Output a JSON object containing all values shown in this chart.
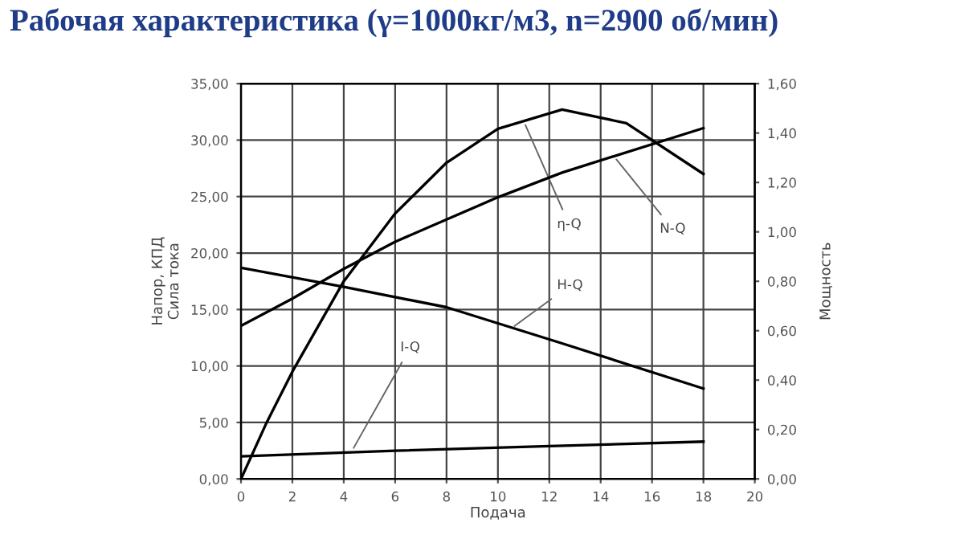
{
  "chart_data": {
    "type": "line",
    "title": "Рабочая характеристика (γ=1000кг/м3, n=2900 об/мин)",
    "xlabel": "Подача",
    "ylabel": "Напор, КПД\nСила тока",
    "y2label": "Мощность",
    "series": [
      {
        "color": "#000000",
        "x": [
          0,
          1,
          2,
          4,
          6,
          8,
          10,
          12.5,
          15,
          18
        ],
        "values": [
          0,
          5,
          9.5,
          17.5,
          23.5,
          28,
          31,
          32.7,
          31.5,
          27
        ]
      },
      {
        "color": "#000000",
        "axis": "y2",
        "x": [
          0,
          2,
          4,
          6,
          8,
          10,
          12.5,
          18
        ],
        "values": [
          0.62,
          0.73,
          0.85,
          0.96,
          1.05,
          1.14,
          1.24,
          1.42
        ]
      },
      {
        "color": "#000000",
        "x": [
          0,
          4,
          8,
          12.5,
          18
        ],
        "values": [
          18.7,
          17,
          15.2,
          12,
          8
        ]
      },
      {
        "color": "#000000",
        "x": [
          0,
          6,
          12,
          18
        ],
        "values": [
          2,
          2.5,
          2.9,
          3.3
        ]
      }
    ],
    "annotations": [
      {
        "text": "η-Q",
        "x": 11,
        "y": 31.7
      },
      {
        "text": "N-Q",
        "x": 14.5,
        "y": 28.6
      },
      {
        "text": "H-Q",
        "x": 10.5,
        "y": 13.3
      },
      {
        "text": "I-Q",
        "x": 4.3,
        "y": 2.4
      }
    ],
    "xlim": [
      0,
      20
    ],
    "xticks": [
      0,
      2,
      4,
      6,
      8,
      10,
      12,
      14,
      16,
      18,
      20
    ],
    "ylim": [
      0,
      35
    ],
    "yticks": [
      {
        "value": 0,
        "label": "0,00"
      },
      {
        "value": 5,
        "label": "5,00"
      },
      {
        "value": 10,
        "label": "10,00"
      },
      {
        "value": 15,
        "label": "15,00"
      },
      {
        "value": 20,
        "label": "20,00"
      },
      {
        "value": 25,
        "label": "25,00"
      },
      {
        "value": 30,
        "label": "30,00"
      },
      {
        "value": 35,
        "label": "35,00"
      }
    ],
    "y2lim": [
      0,
      1.6
    ],
    "y2ticks": [
      {
        "value": 0,
        "label": "0,00"
      },
      {
        "value": 0.2,
        "label": "0,20"
      },
      {
        "value": 0.4,
        "label": "0,40"
      },
      {
        "value": 0.6,
        "label": "0,60"
      },
      {
        "value": 0.8,
        "label": "0,80"
      },
      {
        "value": 1.0,
        "label": "1,00"
      },
      {
        "value": 1.2,
        "label": "1,20"
      },
      {
        "value": 1.4,
        "label": "1,40"
      },
      {
        "value": 1.6,
        "label": "1,60"
      }
    ],
    "grid": true,
    "legend": false,
    "line_style": "solid",
    "marker": "none"
  }
}
